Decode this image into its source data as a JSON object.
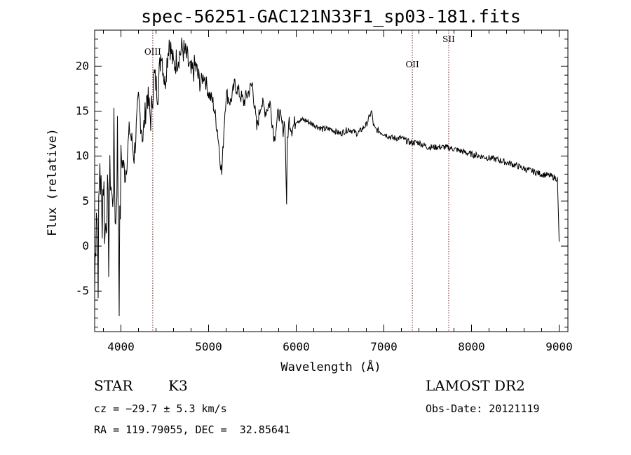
{
  "chart_data": {
    "type": "line",
    "title": "spec-56251-GAC121N33F1_sp03-181.fits",
    "xlabel": "Wavelength (Å)",
    "ylabel": "Flux (relative)",
    "xlim": [
      3700,
      9100
    ],
    "ylim": [
      -9.5,
      24
    ],
    "xticks": [
      4000,
      5000,
      6000,
      7000,
      8000,
      9000
    ],
    "yticks": [
      -5,
      0,
      5,
      10,
      15,
      20
    ],
    "grid": false,
    "series": [
      {
        "x": [
          3700,
          3720,
          3740,
          3760,
          3780,
          3800,
          3820,
          3840,
          3860,
          3880,
          3900,
          3920,
          3940,
          3960,
          3980,
          4000,
          4050,
          4100,
          4150,
          4200,
          4250,
          4300,
          4340,
          4380,
          4420,
          4460,
          4500,
          4550,
          4600,
          4650,
          4700,
          4750,
          4800,
          4850,
          4900,
          4950,
          5000,
          5050,
          5100,
          5150,
          5180,
          5200,
          5250,
          5300,
          5350,
          5400,
          5450,
          5500,
          5550,
          5600,
          5650,
          5700,
          5750,
          5800,
          5850,
          5870,
          5890,
          5900,
          5920,
          5950,
          6000,
          6100,
          6200,
          6300,
          6400,
          6500,
          6600,
          6700,
          6800,
          6860,
          6880,
          6900,
          7000,
          7100,
          7200,
          7300,
          7400,
          7500,
          7600,
          7700,
          7800,
          7900,
          8000,
          8100,
          8200,
          8300,
          8400,
          8500,
          8600,
          8700,
          8800,
          8900,
          8980,
          9000
        ],
        "y": [
          -5,
          6,
          -2,
          10,
          3,
          8,
          1,
          6,
          0,
          9,
          4,
          11,
          2,
          12,
          -4,
          10,
          8,
          13,
          10,
          16,
          12,
          17,
          14,
          19,
          17,
          22,
          18,
          23,
          20,
          21,
          22,
          21,
          19,
          20,
          18,
          19,
          17,
          16,
          13,
          8,
          14,
          17,
          16,
          18,
          17,
          16,
          17,
          18,
          13,
          16,
          15,
          16,
          12,
          15,
          13,
          14,
          5,
          12,
          14,
          13,
          14,
          14,
          13.5,
          13,
          13,
          12.5,
          13,
          12.5,
          13.5,
          15,
          13.5,
          13,
          12.5,
          12,
          12,
          11.5,
          11.5,
          11,
          11,
          11,
          10.8,
          10.5,
          10.2,
          10,
          9.8,
          9.6,
          9.3,
          9,
          8.6,
          8.3,
          8,
          7.8,
          7.5,
          0.5
        ],
        "ylim_note": ""
      }
    ],
    "lines": [
      {
        "label": "OIII",
        "x": 4363
      },
      {
        "label": "OII",
        "x": 7325
      },
      {
        "label": "SII",
        "x": 7740
      }
    ]
  },
  "info": {
    "class": "STAR",
    "subclass": "K3",
    "cz": "cz = −29.7 ± 5.3 km/s",
    "radec": "RA = 119.79055, DEC =  32.85641",
    "survey": "LAMOST DR2",
    "obsdate": "Obs-Date: 20121119"
  },
  "colors": {
    "spectrum": "#000000",
    "marker": "#8b1a1a"
  }
}
